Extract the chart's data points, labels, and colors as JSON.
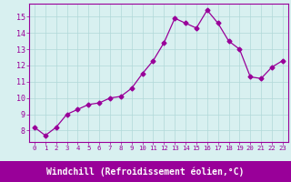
{
  "x": [
    0,
    1,
    2,
    3,
    4,
    5,
    6,
    7,
    8,
    9,
    10,
    11,
    12,
    13,
    14,
    15,
    16,
    17,
    18,
    19,
    20,
    21,
    22,
    23
  ],
  "y": [
    8.2,
    7.7,
    8.2,
    9.0,
    9.3,
    9.6,
    9.7,
    10.0,
    10.1,
    10.6,
    11.5,
    12.3,
    13.4,
    14.9,
    14.6,
    14.3,
    15.4,
    14.6,
    13.5,
    13.0,
    11.3,
    11.2,
    11.9,
    12.3
  ],
  "line_color": "#990099",
  "marker": "D",
  "markersize": 2.5,
  "linewidth": 0.9,
  "xlabel": "Windchill (Refroidissement éolien,°C)",
  "xlabel_fontsize": 7,
  "ylabel_ticks": [
    8,
    9,
    10,
    11,
    12,
    13,
    14,
    15
  ],
  "xtick_labels": [
    "0",
    "1",
    "2",
    "3",
    "4",
    "5",
    "6",
    "7",
    "8",
    "9",
    "10",
    "11",
    "12",
    "13",
    "14",
    "15",
    "16",
    "17",
    "18",
    "19",
    "20",
    "21",
    "22",
    "23"
  ],
  "ylim": [
    7.3,
    15.8
  ],
  "xlim": [
    -0.5,
    23.5
  ],
  "bg_color": "#d8f0f0",
  "grid_color": "#b0d8d8",
  "tick_color": "#990099",
  "label_color": "#990099",
  "spine_color": "#990099",
  "xlabel_bg_color": "#990099",
  "xlabel_text_color": "#ffffff"
}
